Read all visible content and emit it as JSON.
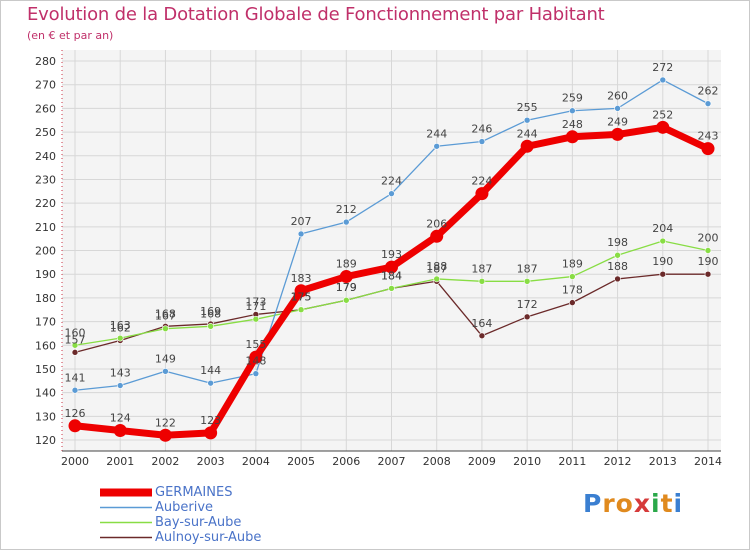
{
  "header": {
    "title": "Evolution de la Dotation Globale de Fonctionnement par Habitant",
    "subtitle": "(en € et par an)"
  },
  "chart_data": {
    "type": "line",
    "title": "Evolution de la Dotation Globale de Fonctionnement par Habitant",
    "subtitle": "(en € et par an)",
    "xlabel": "",
    "ylabel": "",
    "ylim": [
      120,
      280
    ],
    "yticks": [
      "120",
      "130",
      "140",
      "150",
      "160",
      "170",
      "180",
      "190",
      "200",
      "210",
      "220",
      "230",
      "240",
      "250",
      "260",
      "270",
      "280"
    ],
    "x": [
      "2000",
      "2001",
      "2002",
      "2003",
      "2004",
      "2005",
      "2006",
      "2007",
      "2008",
      "2009",
      "2010",
      "2011",
      "2012",
      "2013",
      "2014"
    ],
    "grid": true,
    "legend_position": "bottom-left",
    "series": [
      {
        "name": "GERMAINES",
        "color": "#ee0000",
        "values": [
          126,
          124,
          122,
          123,
          155,
          183,
          189,
          193,
          206,
          224,
          244,
          248,
          249,
          252,
          243
        ]
      },
      {
        "name": "Auberive",
        "color": "#5b9bd5",
        "values": [
          141,
          143,
          149,
          144,
          148,
          207,
          212,
          224,
          244,
          246,
          255,
          259,
          260,
          272,
          262
        ]
      },
      {
        "name": "Bay-sur-Aube",
        "color": "#88dd44",
        "values": [
          160,
          163,
          167,
          168,
          171,
          175,
          179,
          184,
          188,
          187,
          187,
          189,
          198,
          204,
          200
        ]
      },
      {
        "name": "Aulnoy-sur-Aube",
        "color": "#6b2a2a",
        "values": [
          157,
          162,
          168,
          169,
          173,
          175,
          179,
          184,
          187,
          164,
          172,
          178,
          188,
          190,
          190
        ]
      }
    ]
  },
  "brand": {
    "letters": [
      "P",
      "r",
      "o",
      "x",
      "i",
      "t",
      "i"
    ],
    "colors": [
      "#3a7fd1",
      "#e08a1e",
      "#e08a1e",
      "#d63a3a",
      "#2aa84a",
      "#e08a1e",
      "#3a7fd1"
    ]
  }
}
